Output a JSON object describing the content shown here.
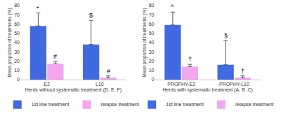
{
  "chart_data": [
    {
      "type": "bar",
      "categories": [
        "E2",
        "L10"
      ],
      "x_label": "Herds without systematic treatment (D, E, F)",
      "y_label": "Mean proportion of treatments (%)",
      "series": [
        {
          "name": "1st line treatment",
          "color": "#4169e1",
          "values": [
            58,
            38
          ],
          "errors": [
            14,
            26
          ],
          "annotations": [
            "*",
            "$"
          ]
        },
        {
          "name": "relapse treatment",
          "color": "#f4a6f0",
          "values": [
            17,
            2
          ],
          "errors": [
            2.5,
            2
          ],
          "annotations": [
            "#",
            "#"
          ]
        }
      ],
      "ylim": [
        0,
        80
      ],
      "yticks": [
        0,
        10,
        20,
        30,
        40,
        50,
        60,
        70,
        80
      ],
      "grid": false,
      "legend": "bottom"
    },
    {
      "type": "bar",
      "categories": [
        "PROPHY-E2",
        "PROPHY-L10"
      ],
      "x_label": "Herds with systematic treatment (A, B ,C)",
      "y_label": "Mean proportion of treatments (%)",
      "series": [
        {
          "name": "1st line treatment",
          "color": "#4169e1",
          "values": [
            59,
            16
          ],
          "errors": [
            14,
            26
          ],
          "annotations": [
            "^",
            "§"
          ]
        },
        {
          "name": "relapse treatment",
          "color": "#f4a6f0",
          "values": [
            14,
            2
          ],
          "errors": [
            2.5,
            2
          ],
          "annotations": [
            "†",
            "†"
          ]
        }
      ],
      "ylim": [
        0,
        80
      ],
      "yticks": [
        0,
        10,
        20,
        30,
        40,
        50,
        60,
        70,
        80
      ],
      "grid": false,
      "legend": "bottom"
    }
  ]
}
